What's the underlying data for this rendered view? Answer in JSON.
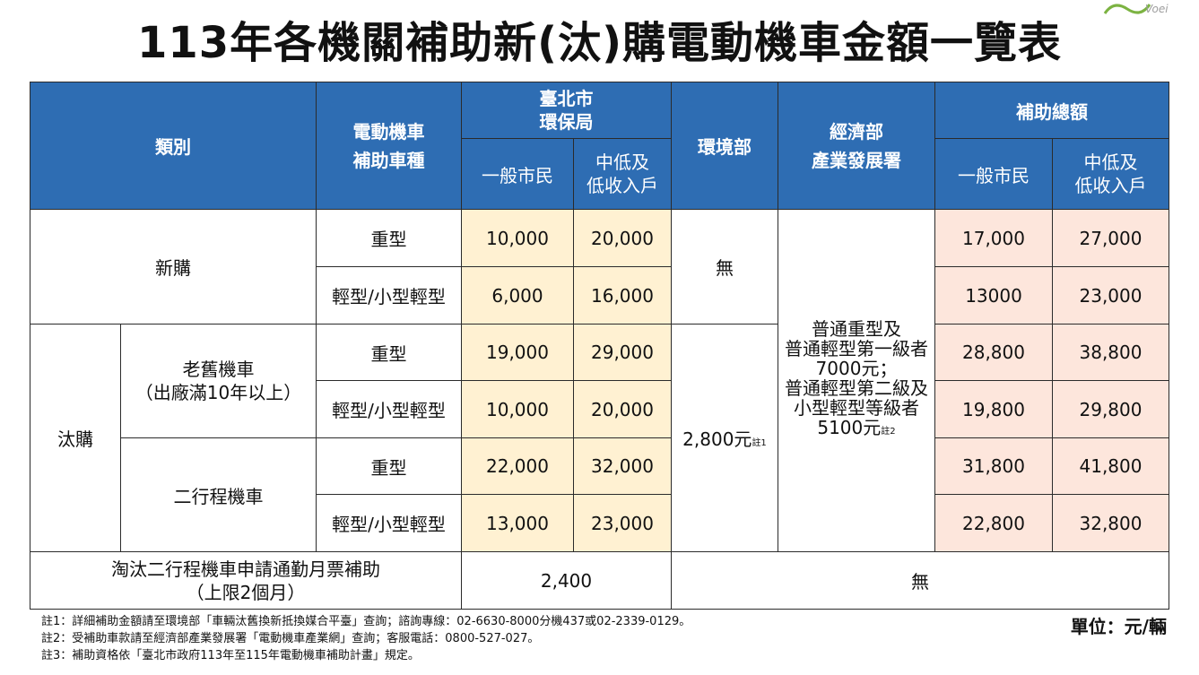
{
  "title": "113年各機關補助新(汰)購電動機車金額一覽表",
  "logo_text": "Voei",
  "header": {
    "category": "類別",
    "vehicle_type": "電動機車\n補助車種",
    "taipei_epb": "臺北市\n環保局",
    "moenv": "環境部",
    "moea_ida": "經濟部\n產業發展署",
    "total": "補助總額",
    "general": "一般市民",
    "low_income": "中低及\n低收入戶"
  },
  "categories": {
    "new": "新購",
    "replace": "汰購",
    "old_scooter": "老舊機車\n（出廠滿10年以上）",
    "two_stroke": "二行程機車"
  },
  "types": {
    "heavy": "重型",
    "light": "輕型/小型輕型"
  },
  "rows": [
    {
      "taipei_general": "10,000",
      "taipei_low": "20,000",
      "total_general": "17,000",
      "total_low": "27,000"
    },
    {
      "taipei_general": "6,000",
      "taipei_low": "16,000",
      "total_general": "13000",
      "total_low": "23,000"
    },
    {
      "taipei_general": "19,000",
      "taipei_low": "29,000",
      "total_general": "28,800",
      "total_low": "38,800"
    },
    {
      "taipei_general": "10,000",
      "taipei_low": "20,000",
      "total_general": "19,800",
      "total_low": "29,800"
    },
    {
      "taipei_general": "22,000",
      "taipei_low": "32,000",
      "total_general": "31,800",
      "total_low": "41,800"
    },
    {
      "taipei_general": "13,000",
      "taipei_low": "23,000",
      "total_general": "22,800",
      "total_low": "32,800"
    }
  ],
  "moenv_new": "無",
  "moenv_replace": "2,800元",
  "moenv_replace_note": "註1",
  "moea_note": "普通重型及\n普通輕型第一級者\n7000元；\n普通輕型第二級及\n小型輕型等級者\n5100元",
  "moea_note_mark": "註2",
  "commute": {
    "label": "淘汰二行程機車申請通勤月票補助\n（上限2個月）",
    "value": "2,400",
    "other": "無"
  },
  "footnotes": [
    "註1：詳細補助金額請至環境部「車輛汰舊換新抵換媒合平臺」查詢；諮詢專線：02-6630-8000分機437或02-2339-0129。",
    "註2：受補助車款請至經濟部產業發展署「電動機車產業網」查詢；客服電話：0800-527-027。",
    "註3：補助資格依「臺北市政府113年至115年電動機車補助計畫」規定。"
  ],
  "unit": "單位：元/輛",
  "colors": {
    "header": "#2e6db3",
    "taipei": "#fff1d2",
    "total": "#fde6dc"
  }
}
